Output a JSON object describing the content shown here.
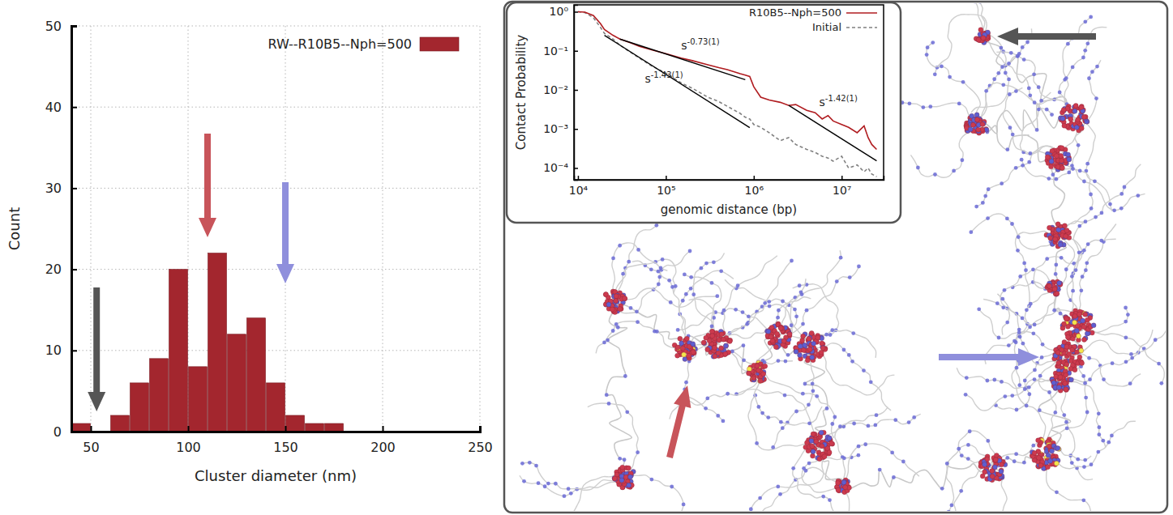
{
  "chart_data": [
    {
      "type": "histogram",
      "xlabel": "Cluster diameter (nm)",
      "ylabel": "Count",
      "bins": [
        40,
        50,
        60,
        70,
        80,
        90,
        100,
        110,
        120,
        130,
        140,
        150,
        160,
        170,
        180
      ],
      "series": [
        {
          "name": "RW--R10B5--Nph=500",
          "color": "#a3262e",
          "values": [
            1,
            0,
            2,
            6,
            9,
            20,
            8,
            22,
            12,
            14,
            6,
            2,
            1,
            1
          ]
        }
      ],
      "xlim": [
        40,
        250
      ],
      "xticks": [
        50,
        100,
        150,
        200,
        250
      ],
      "ylim": [
        0,
        50
      ],
      "yticks": [
        0,
        10,
        20,
        30,
        40,
        50
      ],
      "grid": true,
      "legend": "upper right",
      "arrows": [
        {
          "x": 53,
          "color": "#555555"
        },
        {
          "x": 110,
          "color": "#c8545a"
        },
        {
          "x": 150,
          "color": "#8f8fdc"
        }
      ]
    },
    {
      "type": "line",
      "log": true,
      "xlabel": "genomic distance (bp)",
      "ylabel": "Contact Probability",
      "x": [
        10000,
        12000,
        15000,
        18000,
        20000,
        25000,
        30000,
        40000,
        50000,
        70000,
        100000,
        150000,
        200000,
        300000,
        400000,
        500000,
        700000,
        800000,
        900000,
        1000000,
        1200000,
        1500000,
        2000000,
        2500000,
        3000000,
        4000000,
        5000000,
        6000000,
        7000000,
        8000000,
        10000000,
        12000000,
        15000000,
        18000000,
        20000000,
        22000000,
        25000000
      ],
      "series": [
        {
          "name": "R10B5--Nph=500",
          "color": "#b01c20",
          "line_style": "solid",
          "values": [
            1,
            0.98,
            0.8,
            0.5,
            0.35,
            0.25,
            0.2,
            0.16,
            0.13,
            0.105,
            0.085,
            0.065,
            0.056,
            0.044,
            0.037,
            0.033,
            0.026,
            0.024,
            0.022,
            0.012,
            0.0065,
            0.0055,
            0.0048,
            0.004,
            0.0042,
            0.003,
            0.0026,
            0.0018,
            0.0022,
            0.0016,
            0.0013,
            0.0011,
            0.0008,
            0.0012,
            0.0006,
            0.0004,
            0.0003
          ]
        },
        {
          "name": "Initial",
          "color": "#808080",
          "line_style": "dashed",
          "values": [
            1,
            0.95,
            0.7,
            0.4,
            0.28,
            0.2,
            0.14,
            0.09,
            0.065,
            0.04,
            0.027,
            0.015,
            0.011,
            0.0065,
            0.005,
            0.0038,
            0.0025,
            0.002,
            0.0018,
            0.0013,
            0.0011,
            0.0008,
            0.0005,
            0.0006,
            0.0004,
            0.0003,
            0.00025,
            0.0002,
            0.00018,
            0.00015,
            0.0002,
            0.0001,
            0.00012,
            8e-05,
            0.0001,
            7e-05,
            6e-05
          ]
        }
      ],
      "fits": [
        {
          "base": "s",
          "exponent": "-0.73(1)",
          "x": [
            30000,
            800000
          ],
          "y": [
            0.2,
            0.0182
          ]
        },
        {
          "base": "s",
          "exponent": "-1.43(1)",
          "x": [
            20000,
            900000
          ],
          "y": [
            0.25,
            0.00108
          ]
        },
        {
          "base": "s",
          "exponent": "-1.42(1)",
          "x": [
            2500000,
            25000000
          ],
          "y": [
            0.004,
            0.000152
          ]
        }
      ],
      "xlim": [
        9000,
        30000000
      ],
      "xticks": [
        {
          "value": 10000,
          "label": "10⁴"
        },
        {
          "value": 100000,
          "label": "10⁵"
        },
        {
          "value": 1000000,
          "label": "10⁶"
        },
        {
          "value": 10000000,
          "label": "10⁷"
        }
      ],
      "ylim": [
        5e-05,
        1.5
      ],
      "yticks": [
        {
          "value": 0.0001,
          "label": "10⁻⁴"
        },
        {
          "value": 0.001,
          "label": "10⁻³"
        },
        {
          "value": 0.01,
          "label": "10⁻²"
        },
        {
          "value": 0.1,
          "label": "10⁻¹"
        },
        {
          "value": 1,
          "label": "10⁰"
        }
      ],
      "legend": "upper right"
    }
  ]
}
